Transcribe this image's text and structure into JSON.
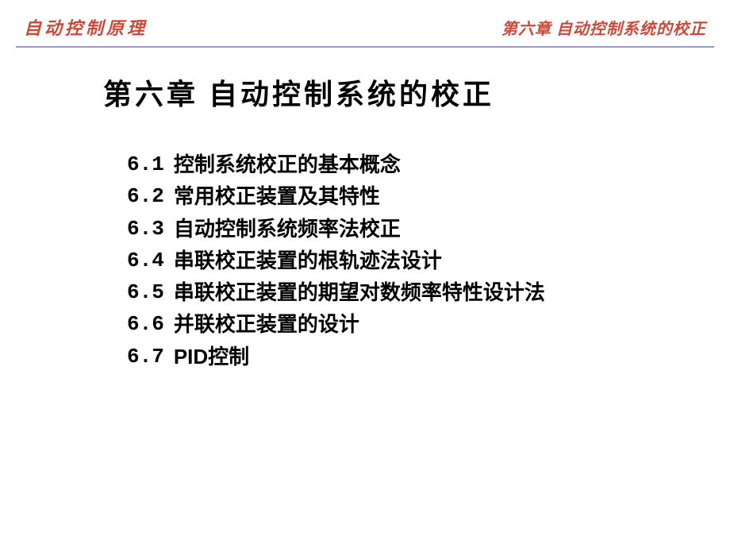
{
  "header": {
    "left": "自动控制原理",
    "right": "第六章 自动控制系统的校正"
  },
  "chapter_title": "第六章 自动控制系统的校正",
  "toc": [
    {
      "number": "6.1",
      "text": "控制系统校正的基本概念"
    },
    {
      "number": "6.2",
      "text": "常用校正装置及其特性"
    },
    {
      "number": "6.3",
      "text": "自动控制系统频率法校正"
    },
    {
      "number": "6.4",
      "text": "串联校正装置的根轨迹法设计"
    },
    {
      "number": "6.5",
      "text": "串联校正装置的期望对数频率特性设计法"
    },
    {
      "number": "6.6",
      "text": "并联校正装置的设计"
    },
    {
      "number": "6.7",
      "text": "PID控制"
    }
  ],
  "colors": {
    "header_text": "#c94a3a",
    "divider": "#9999cc",
    "body_text": "#000000",
    "background": "#ffffff"
  }
}
